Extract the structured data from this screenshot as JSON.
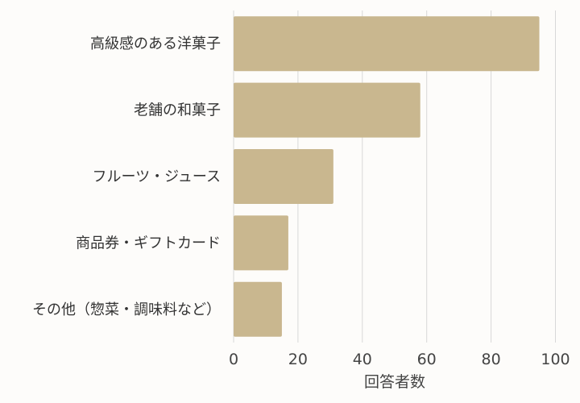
{
  "chart_data": {
    "type": "bar",
    "orientation": "horizontal",
    "title": "",
    "categories": [
      "高級感のある洋菓子",
      "老舗の和菓子",
      "フルーツ・ジュース",
      "商品券・ギフトカード",
      "その他（惣菜・調味料など）"
    ],
    "values": [
      95,
      58,
      31,
      17,
      15
    ],
    "xlabel": "回答者数",
    "ylabel": "",
    "xlim": [
      0,
      100
    ],
    "xticks": [
      "0",
      "20",
      "40",
      "60",
      "80",
      "100"
    ],
    "grid": true,
    "bar_color": "#c9b78f",
    "grid_color": "#d8d8d8"
  }
}
